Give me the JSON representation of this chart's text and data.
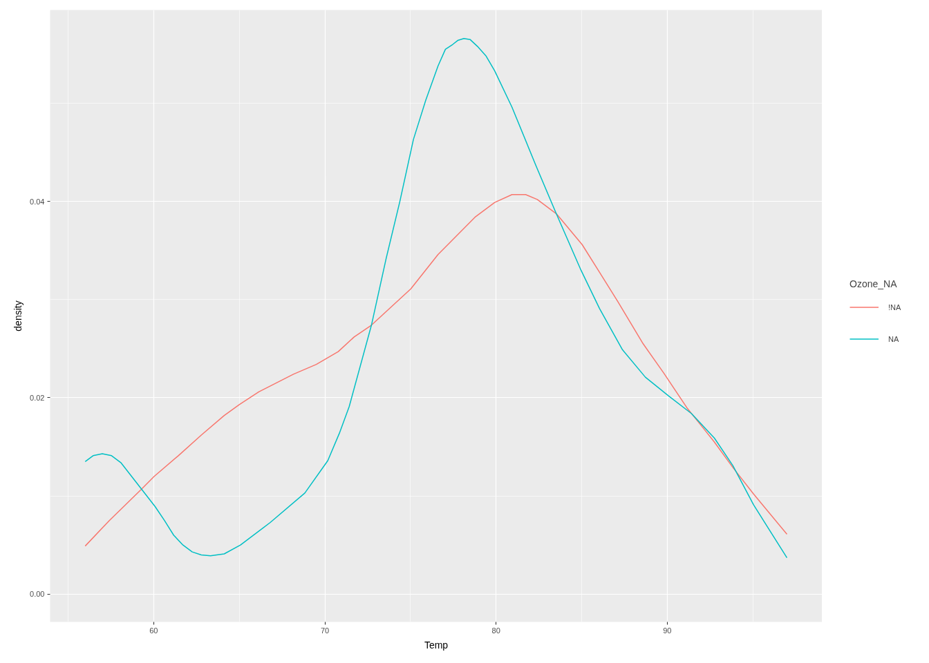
{
  "chart_data": {
    "type": "line",
    "xlabel": "Temp",
    "ylabel": "density",
    "legend_title": "Ozone_NA",
    "xlim": [
      53.95,
      99.05
    ],
    "xticks": [
      60,
      70,
      80,
      90
    ],
    "ylim": [
      -0.00283,
      0.0595
    ],
    "yticks": [
      {
        "value": 0,
        "label": "0.00"
      },
      {
        "value": 0.02,
        "label": "0.02"
      },
      {
        "value": 0.04,
        "label": "0.04"
      }
    ],
    "grid": true,
    "legend": "right",
    "series": [
      {
        "name": "!NA",
        "color": "#f8766d",
        "x": [
          56.0,
          57.41,
          59.29,
          60.03,
          61.44,
          62.78,
          64.12,
          65.0,
          66.14,
          68.16,
          69.5,
          70.78,
          71.71,
          72.72,
          75.02,
          76.61,
          78.77,
          79.92,
          80.93,
          81.33,
          81.73,
          82.41,
          83.55,
          85.03,
          86.04,
          87.11,
          88.59,
          89.8,
          91.14,
          92.75,
          93.83,
          95.04,
          96.99
        ],
        "values": [
          0.0049,
          0.0075,
          0.0107,
          0.012,
          0.0141,
          0.0162,
          0.0182,
          0.0193,
          0.0206,
          0.0224,
          0.0234,
          0.0247,
          0.0262,
          0.0274,
          0.0311,
          0.0346,
          0.0384,
          0.0399,
          0.0407,
          0.0407,
          0.0407,
          0.0402,
          0.0387,
          0.0356,
          0.0328,
          0.0298,
          0.0255,
          0.0225,
          0.019,
          0.0155,
          0.0129,
          0.0102,
          0.0061
        ]
      },
      {
        "name": "NA",
        "color": "#00bfc4",
        "x": [
          56.0,
          56.46,
          57.0,
          57.54,
          58.08,
          59.29,
          60.09,
          60.63,
          61.17,
          61.71,
          62.25,
          62.78,
          63.32,
          64.12,
          65.07,
          66.81,
          68.83,
          70.17,
          70.85,
          71.42,
          72.72,
          73.58,
          74.38,
          75.17,
          75.89,
          76.61,
          77.04,
          77.47,
          77.76,
          78.12,
          78.48,
          78.91,
          79.42,
          79.92,
          80.93,
          82.34,
          83.48,
          84.96,
          86.04,
          87.38,
          88.72,
          90.07,
          91.41,
          92.75,
          93.83,
          95.04,
          96.99
        ],
        "values": [
          0.0135,
          0.0141,
          0.0143,
          0.0141,
          0.0134,
          0.0107,
          0.0089,
          0.0075,
          0.006,
          0.005,
          0.0043,
          0.004,
          0.0039,
          0.0041,
          0.005,
          0.0073,
          0.0103,
          0.0136,
          0.0164,
          0.0191,
          0.0274,
          0.0342,
          0.04,
          0.0463,
          0.0503,
          0.0538,
          0.0555,
          0.056,
          0.0564,
          0.0566,
          0.0565,
          0.0558,
          0.0548,
          0.0533,
          0.0496,
          0.0436,
          0.0389,
          0.033,
          0.0291,
          0.0249,
          0.0221,
          0.0202,
          0.0184,
          0.0159,
          0.0131,
          0.0091,
          0.0037
        ]
      }
    ]
  }
}
